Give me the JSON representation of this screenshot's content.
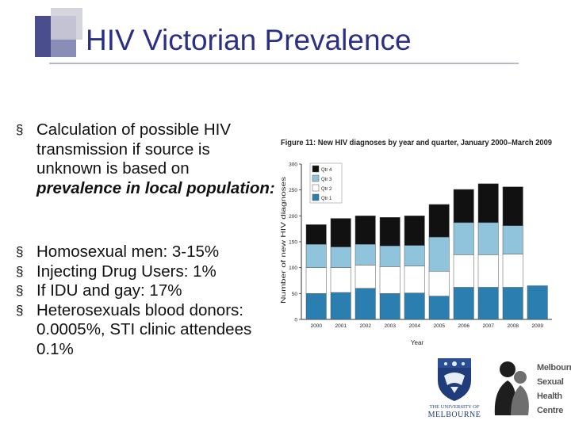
{
  "slide": {
    "title": "HIV Victorian Prevalence",
    "bullets_top": [
      {
        "text": "Calculation of possible HIV transmission if source is unknown is based on ",
        "emphasis": "prevalence in local population:"
      }
    ],
    "bullets_bottom": [
      "Homosexual men: 3-15%",
      "Injecting Drug Users: 1%",
      "If IDU and gay: 17%",
      "Heterosexuals blood donors: 0.0005%, STI clinic attendees 0.1%"
    ],
    "bullet_glyph": "§"
  },
  "logos": {
    "university": [
      "THE UNIVERSITY OF",
      "MELBOURNE"
    ],
    "mshc": [
      "Melbourne",
      "Sexual",
      "Health",
      "Centre"
    ]
  },
  "colors": {
    "title": "#2b2f86",
    "q1": "#2a7fb0",
    "q2": "#ffffff",
    "q3": "#8fc4dc",
    "q4": "#111111"
  },
  "chart_data": {
    "type": "bar",
    "stacked": true,
    "title": "Figure 11: New HIV diagnoses by year and quarter, January 2000–March 2009",
    "xlabel": "Year",
    "ylabel": "Number of new HIV diagnoses",
    "ylim": [
      0,
      300
    ],
    "yticks": [
      0,
      50,
      100,
      150,
      200,
      250,
      300
    ],
    "categories": [
      "2000",
      "2001",
      "2002",
      "2003",
      "2004",
      "2005",
      "2006",
      "2007",
      "2008",
      "2009"
    ],
    "legend_position": "top-right",
    "series": [
      {
        "name": "Qtr 1",
        "color": "#2a7fb0",
        "values": [
          50,
          52,
          60,
          50,
          51,
          45,
          62,
          62,
          62,
          65
        ]
      },
      {
        "name": "Qtr 2",
        "color": "#ffffff",
        "values": [
          50,
          48,
          45,
          52,
          52,
          48,
          63,
          63,
          64,
          0
        ]
      },
      {
        "name": "Qtr 3",
        "color": "#8fc4dc",
        "values": [
          45,
          40,
          40,
          40,
          40,
          66,
          62,
          62,
          55,
          0
        ]
      },
      {
        "name": "Qtr 4",
        "color": "#111111",
        "values": [
          38,
          55,
          55,
          55,
          57,
          63,
          64,
          75,
          75,
          0
        ]
      }
    ]
  }
}
